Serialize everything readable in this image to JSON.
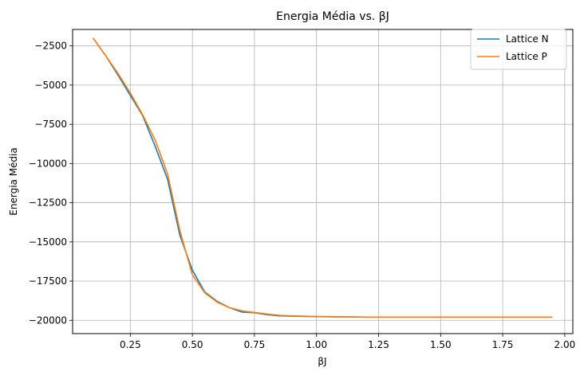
{
  "chart_data": {
    "type": "line",
    "title": "Energia Média vs. βJ",
    "xlabel": "βJ",
    "ylabel": "Energia Média",
    "xlim": [
      0.0175,
      2.0325
    ],
    "ylim": [
      -20850,
      -1450
    ],
    "grid": true,
    "legend_position": "top-right",
    "xticks": [
      0.25,
      0.5,
      0.75,
      1.0,
      1.25,
      1.5,
      1.75,
      2.0
    ],
    "xtick_labels": [
      "0.25",
      "0.50",
      "0.75",
      "1.00",
      "1.25",
      "1.50",
      "1.75",
      "2.00"
    ],
    "yticks": [
      -2500,
      -5000,
      -7500,
      -10000,
      -12500,
      -15000,
      -17500,
      -20000
    ],
    "ytick_labels": [
      "−2500",
      "−5000",
      "−7500",
      "−10000",
      "−12500",
      "−15000",
      "−17500",
      "−20000"
    ],
    "series": [
      {
        "name": "Lattice N",
        "color": "#1f77b4",
        "x": [
          0.1,
          0.15,
          0.2,
          0.25,
          0.3,
          0.35,
          0.4,
          0.45,
          0.5,
          0.55,
          0.6,
          0.65,
          0.7,
          0.75,
          0.8,
          0.85,
          0.9,
          0.95,
          1.0,
          1.05,
          1.1,
          1.15,
          1.2,
          1.25,
          1.3,
          1.35,
          1.4,
          1.45,
          1.5,
          1.55,
          1.6,
          1.65,
          1.7,
          1.75,
          1.8,
          1.85,
          1.9,
          1.95
        ],
        "y": [
          -2000,
          -3100,
          -4350,
          -5650,
          -6950,
          -8900,
          -11000,
          -14600,
          -16800,
          -18200,
          -18800,
          -19200,
          -19480,
          -19520,
          -19640,
          -19720,
          -19740,
          -19760,
          -19770,
          -19780,
          -19790,
          -19790,
          -19800,
          -19800,
          -19800,
          -19800,
          -19800,
          -19800,
          -19800,
          -19800,
          -19800,
          -19800,
          -19800,
          -19800,
          -19800,
          -19800,
          -19800,
          -19800
        ]
      },
      {
        "name": "Lattice P",
        "color": "#ff7f0e",
        "x": [
          0.1,
          0.15,
          0.2,
          0.25,
          0.3,
          0.35,
          0.4,
          0.45,
          0.5,
          0.55,
          0.6,
          0.65,
          0.7,
          0.75,
          0.8,
          0.85,
          0.9,
          0.95,
          1.0,
          1.05,
          1.1,
          1.15,
          1.2,
          1.25,
          1.3,
          1.35,
          1.4,
          1.45,
          1.5,
          1.55,
          1.6,
          1.65,
          1.7,
          1.75,
          1.8,
          1.85,
          1.9,
          1.95
        ],
        "y": [
          -2000,
          -3100,
          -4250,
          -5500,
          -6900,
          -8500,
          -10650,
          -14300,
          -17100,
          -18250,
          -18850,
          -19200,
          -19400,
          -19500,
          -19600,
          -19680,
          -19720,
          -19740,
          -19760,
          -19770,
          -19780,
          -19790,
          -19800,
          -19800,
          -19800,
          -19800,
          -19800,
          -19800,
          -19800,
          -19800,
          -19800,
          -19800,
          -19800,
          -19800,
          -19800,
          -19800,
          -19800,
          -19800
        ]
      }
    ]
  }
}
